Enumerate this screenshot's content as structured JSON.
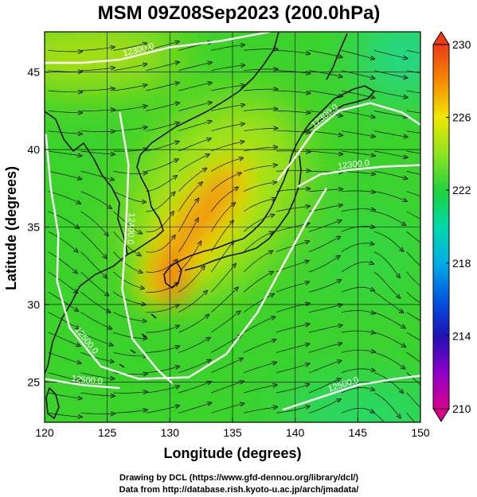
{
  "title": "MSM 09Z08Sep2023 (200.0hPa)",
  "chart_data": {
    "type": "heatmap",
    "title": "MSM 09Z08Sep2023 (200.0hPa)",
    "xlabel": "Longitude (degrees)",
    "ylabel": "Latitude  (degrees)",
    "xlim": [
      120,
      150
    ],
    "ylim": [
      22.4,
      47.6
    ],
    "xticks": [
      "120",
      "125",
      "130",
      "135",
      "140",
      "145",
      "150"
    ],
    "yticks": [
      "25",
      "30",
      "35",
      "40",
      "45"
    ],
    "colorbar": {
      "min": 210,
      "max": 230,
      "labels": [
        "230",
        "226",
        "222",
        "218",
        "214",
        "210"
      ],
      "ticks": [
        230,
        226,
        222,
        218,
        214,
        210
      ]
    },
    "contours": [
      {
        "label": "12300.0",
        "level": 12300,
        "points": [
          [
            120.0,
            45.6
          ],
          [
            123.0,
            45.6
          ],
          [
            126.0,
            45.8
          ],
          [
            130.0,
            46.6
          ],
          [
            134.0,
            47.0
          ],
          [
            138.0,
            47.6
          ]
        ]
      },
      {
        "label": "12300.0",
        "level": 12300,
        "points": [
          [
            138.6,
            38.0
          ],
          [
            140.0,
            39.5
          ],
          [
            141.5,
            41.2
          ],
          [
            143.5,
            42.5
          ],
          [
            146.0,
            43.0
          ],
          [
            148.5,
            42.4
          ],
          [
            150.0,
            41.6
          ]
        ]
      },
      {
        "label": "12300.0",
        "level": 12300,
        "points": [
          [
            140.2,
            37.6
          ],
          [
            142.0,
            38.4
          ],
          [
            144.5,
            38.7
          ],
          [
            147.0,
            38.9
          ],
          [
            150.0,
            39.0
          ]
        ]
      },
      {
        "label": "12400.0",
        "level": 12400,
        "points": [
          [
            126.0,
            42.4
          ],
          [
            126.7,
            39.0
          ],
          [
            126.5,
            35.0
          ],
          [
            126.2,
            31.0
          ],
          [
            127.0,
            27.8
          ],
          [
            129.0,
            25.8
          ],
          [
            130.2,
            24.9
          ]
        ]
      },
      {
        "label": "12500.0",
        "level": 12500,
        "points": [
          [
            120.1,
            41.0
          ],
          [
            120.5,
            37.5
          ],
          [
            121.1,
            34.5
          ],
          [
            121.0,
            31.5
          ],
          [
            122.0,
            28.5
          ],
          [
            124.5,
            26.0
          ],
          [
            127.5,
            25.2
          ],
          [
            131.5,
            25.3
          ],
          [
            134.5,
            26.8
          ],
          [
            137.0,
            29.5
          ],
          [
            139.0,
            32.5
          ],
          [
            141.0,
            35.5
          ],
          [
            142.5,
            37.5
          ]
        ]
      },
      {
        "label": "12500.0",
        "level": 12500,
        "points": [
          [
            120.0,
            25.2
          ],
          [
            123.0,
            24.8
          ],
          [
            126.0,
            24.6
          ]
        ]
      },
      {
        "label": "12500.0",
        "level": 12500,
        "points": [
          [
            139.0,
            23.2
          ],
          [
            142.0,
            24.0
          ],
          [
            145.0,
            24.8
          ],
          [
            148.0,
            25.2
          ],
          [
            150.0,
            25.4
          ]
        ]
      }
    ],
    "features": [
      "shaded temperature field",
      "wind streamlines",
      "geopotential height contours",
      "coastlines",
      "lat-lon grid"
    ]
  },
  "credits": {
    "line1": "Drawing by DCL (https://www.gfd-dennou.org/library/dcl/)",
    "line2": "Data from http://database.rish.kyoto-u.ac.jp/arch/jmadata/"
  }
}
